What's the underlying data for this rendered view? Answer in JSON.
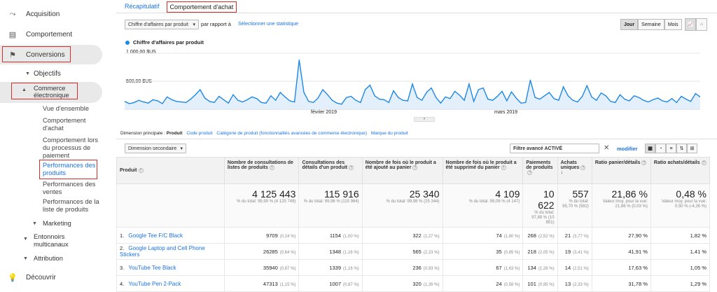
{
  "sidebar": {
    "acquisition": "Acquisition",
    "behavior": "Comportement",
    "conversions": "Conversions",
    "goals": "Objectifs",
    "ecommerce": "Commerce électronique",
    "items": [
      "Vue d'ensemble",
      "Comportement d'achat",
      "Comportement lors du processus de paiement",
      "Performances des produits",
      "Performances des ventes",
      "Performances de la liste de produits"
    ],
    "marketing": "Marketing",
    "funnels": "Entonnoirs multicanaux",
    "attribution": "Attribution",
    "discover": "Découvrir"
  },
  "tabs": {
    "summary": "Récapitulatif",
    "behavior": "Comportement d'achat"
  },
  "controls": {
    "metric_select": "Chiffre d'affaires par produit",
    "vs": "par rapport à",
    "select_stat": "Sélectionner une statistique",
    "day": "Jour",
    "week": "Semaine",
    "month": "Mois"
  },
  "chart_data": {
    "type": "line",
    "title": "Chiffre d'affaires par produit",
    "ytick_top": "1 000,00 $US",
    "ytick_mid": "500,00 $US",
    "x_labels": [
      "février 2019",
      "mars 2019"
    ],
    "ylim": [
      0,
      1000
    ],
    "values": [
      140,
      100,
      120,
      160,
      130,
      110,
      170,
      150,
      100,
      220,
      170,
      140,
      130,
      120,
      180,
      260,
      350,
      200,
      140,
      120,
      230,
      170,
      110,
      260,
      160,
      130,
      170,
      220,
      190,
      120,
      110,
      240,
      160,
      300,
      220,
      150,
      130,
      880,
      300,
      140,
      120,
      200,
      350,
      260,
      160,
      110,
      90,
      210,
      230,
      160,
      120,
      350,
      430,
      240,
      180,
      170,
      120,
      330,
      210,
      160,
      150,
      450,
      210,
      160,
      300,
      380,
      210,
      110,
      220,
      190,
      320,
      250,
      160,
      450,
      140,
      350,
      380,
      180,
      160,
      230,
      320,
      150,
      310,
      200,
      110,
      120,
      520,
      210,
      180,
      240,
      300,
      190,
      160,
      400,
      240,
      160,
      130,
      230,
      420,
      220,
      160,
      290,
      240,
      140,
      120,
      260,
      180,
      150,
      240,
      210,
      160,
      130,
      170,
      200,
      150,
      130,
      190,
      120,
      230,
      180,
      140,
      280,
      220
    ]
  },
  "dimension": {
    "label": "Dimension principale :",
    "product": "Produit",
    "product_code": "Code produit",
    "category": "Catégorie de produit (fonctionnalités avancées de commerce électronique)",
    "brand": "Marque du produit",
    "secondary": "Dimension secondaire",
    "filter": "Filtre avancé ACTIVÉ",
    "modify": "modifier"
  },
  "table": {
    "headers": [
      "Produit",
      "Nombre de consultations de listes de produits",
      "Consultations des détails d'un produit",
      "Nombre de fois où le produit a été ajouté au panier",
      "Nombre de fois où le produit a été supprimé du panier",
      "Paiements de produits",
      "Achats uniques",
      "Ratio panier/détails",
      "Ratio achats/détails"
    ],
    "totals": [
      {
        "big": "4 125 443",
        "sub": "% du total: 99,99 % (4 125 749)"
      },
      {
        "big": "115 916",
        "sub": "% du total: 99,96 % (115 964)"
      },
      {
        "big": "25 340",
        "sub": "% du total: 99,98 % (25 344)"
      },
      {
        "big": "4 109",
        "sub": "% du total: 99,08 % (4 147)"
      },
      {
        "big": "10 622",
        "sub": "% du total: 97,89 % (10 851)"
      },
      {
        "big": "557",
        "sub": "% du total: 95,70 % (582)"
      },
      {
        "big": "21,86 %",
        "sub": "Valeur moy. pour la vue: 21,86 % (0,03 %)"
      },
      {
        "big": "0,48 %",
        "sub": "Valeur moy. pour la vue: 0,50 % (-4,26 %)"
      }
    ],
    "rows": [
      {
        "n": "1.",
        "name": "Google Tee F/C Black",
        "c": [
          [
            "9709",
            "(0,24 %)"
          ],
          [
            "1154",
            "(1,00 %)"
          ],
          [
            "322",
            "(1,27 %)"
          ],
          [
            "74",
            "(1,80 %)"
          ],
          [
            "268",
            "(2,52 %)"
          ],
          [
            "21",
            "(3,77 %)"
          ],
          [
            "27,90 %",
            ""
          ],
          [
            "1,82 %",
            ""
          ]
        ]
      },
      {
        "n": "2.",
        "name": "Google Laptop and Cell Phone Stickers",
        "c": [
          [
            "26285",
            "(0,64 %)"
          ],
          [
            "1348",
            "(1,16 %)"
          ],
          [
            "565",
            "(2,23 %)"
          ],
          [
            "35",
            "(0,85 %)"
          ],
          [
            "218",
            "(2,05 %)"
          ],
          [
            "19",
            "(3,41 %)"
          ],
          [
            "41,91 %",
            ""
          ],
          [
            "1,41 %",
            ""
          ]
        ]
      },
      {
        "n": "3.",
        "name": "YouTube Tee Black",
        "c": [
          [
            "35940",
            "(0,87 %)"
          ],
          [
            "1339",
            "(1,16 %)"
          ],
          [
            "236",
            "(0,93 %)"
          ],
          [
            "67",
            "(1,63 %)"
          ],
          [
            "134",
            "(1,26 %)"
          ],
          [
            "14",
            "(2,51 %)"
          ],
          [
            "17,63 %",
            ""
          ],
          [
            "1,05 %",
            ""
          ]
        ]
      },
      {
        "n": "4.",
        "name": "YouTube Pen 2-Pack",
        "c": [
          [
            "47313",
            "(1,15 %)"
          ],
          [
            "1007",
            "(0,87 %)"
          ],
          [
            "320",
            "(1,26 %)"
          ],
          [
            "24",
            "(0,58 %)"
          ],
          [
            "101",
            "(0,95 %)"
          ],
          [
            "13",
            "(2,33 %)"
          ],
          [
            "31,78 %",
            ""
          ],
          [
            "1,29 %",
            ""
          ]
        ]
      }
    ]
  }
}
